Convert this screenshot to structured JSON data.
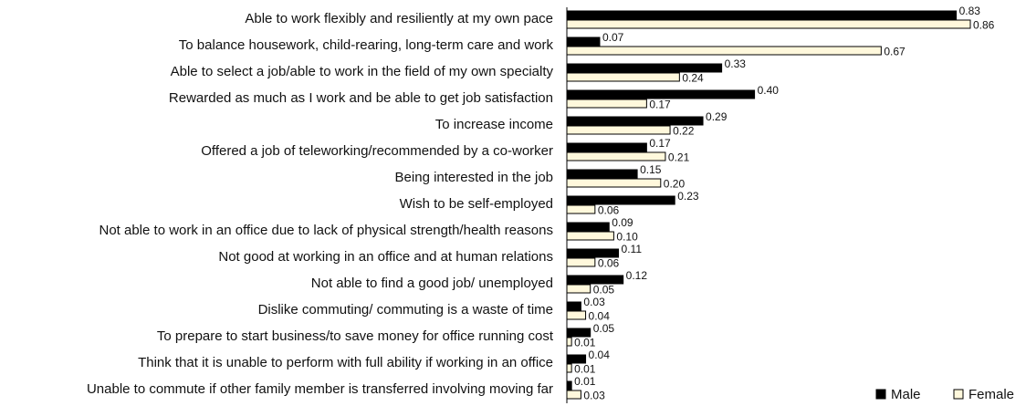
{
  "chart_data": {
    "type": "bar",
    "orientation": "horizontal",
    "categories": [
      "Able to work flexibly and resiliently at my own pace",
      "To balance housework, child-rearing, long-term care and work",
      "Able to select a job/able to work in the field of my own specialty",
      "Rewarded as much as I work and be able to get job satisfaction",
      "To increase income",
      "Offered a job of teleworking/recommended by a co-worker",
      "Being interested in the job",
      "Wish to be self-employed",
      "Not able to work in an office due to lack of physical strength/health reasons",
      "Not good at working in an office and at human relations",
      "Not able to find a good job/ unemployed",
      "Dislike commuting/ commuting is a waste of time",
      "To prepare to start business/to save money for office running cost",
      "Think that it is unable to perform with full ability if working in an office",
      "Unable to commute if other family member is transferred involving moving far"
    ],
    "series": [
      {
        "name": "Male",
        "color": "#000000",
        "values": [
          0.83,
          0.07,
          0.33,
          0.4,
          0.29,
          0.17,
          0.15,
          0.23,
          0.09,
          0.11,
          0.12,
          0.03,
          0.05,
          0.04,
          0.01
        ],
        "value_labels": [
          "0.83",
          "0.07",
          "0.33",
          "0.40",
          "0.29",
          "0.17",
          "0.15",
          "0.23",
          "0.09",
          "0.11",
          "0.12",
          "0.03",
          "0.05",
          "0.04",
          "0.01"
        ]
      },
      {
        "name": "Female",
        "color": "#fff8dc",
        "values": [
          0.86,
          0.67,
          0.24,
          0.17,
          0.22,
          0.21,
          0.2,
          0.06,
          0.1,
          0.06,
          0.05,
          0.04,
          0.01,
          0.01,
          0.03
        ],
        "value_labels": [
          "0.86",
          "0.67",
          "0.24",
          "0.17",
          "0.22",
          "0.21",
          "0.20",
          "0.06",
          "0.10",
          "0.06",
          "0.05",
          "0.04",
          "0.01",
          "0.01",
          "0.03"
        ]
      }
    ],
    "legend": "bottom-right"
  }
}
